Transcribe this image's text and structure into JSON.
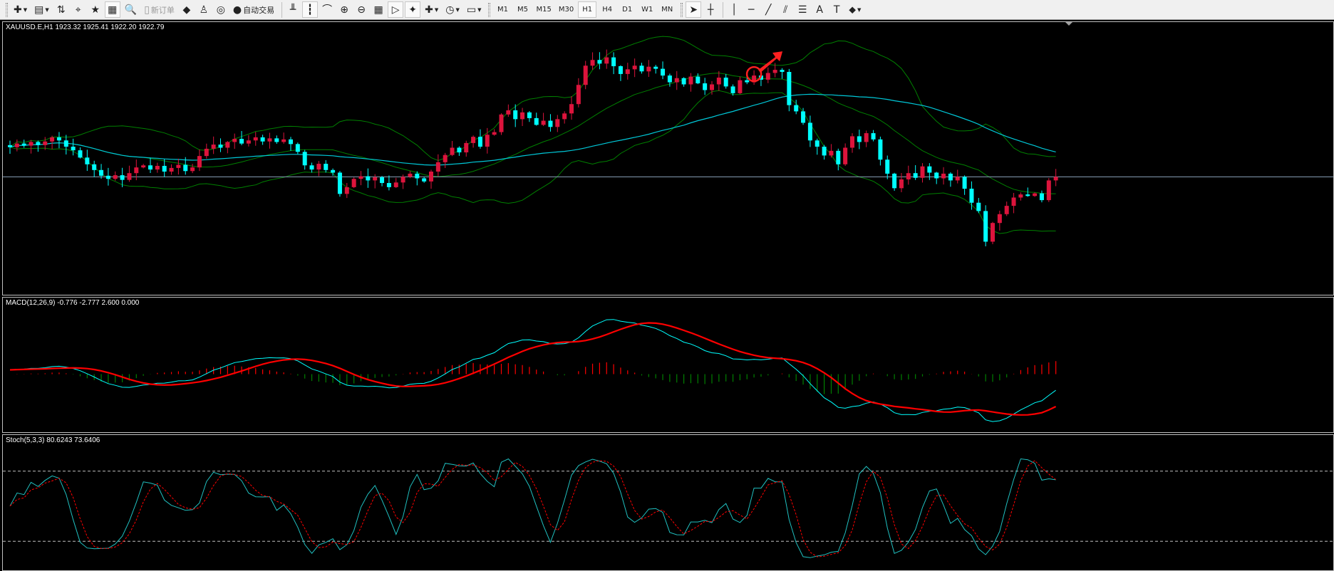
{
  "toolbar": {
    "items": [
      {
        "icon": "new-chart-icon",
        "glyph": "✚",
        "dropdown": true
      },
      {
        "icon": "profiles-icon",
        "glyph": "▤",
        "dropdown": true
      },
      {
        "icon": "market-watch-icon",
        "glyph": "⇅"
      },
      {
        "icon": "data-window-icon",
        "glyph": "⌖"
      },
      {
        "icon": "navigator-icon",
        "glyph": "★"
      },
      {
        "icon": "terminal-icon",
        "glyph": "▦",
        "active": true
      },
      {
        "icon": "strategy-tester-icon",
        "glyph": "🔍"
      },
      {
        "icon": "new-order-icon",
        "glyph": "▯",
        "label": "新订单",
        "disabled": true
      },
      {
        "icon": "metaeditor-icon",
        "glyph": "◆"
      },
      {
        "icon": "options-icon",
        "glyph": "♙"
      },
      {
        "icon": "signals-icon",
        "glyph": "◎"
      },
      {
        "icon": "autotrading-icon",
        "glyph": "●",
        "label": "自动交易"
      },
      {
        "sep": true
      },
      {
        "icon": "bar-chart-icon",
        "glyph": "╨"
      },
      {
        "icon": "candlestick-icon",
        "glyph": "┇",
        "active": true
      },
      {
        "icon": "line-chart-icon",
        "glyph": "⌒"
      },
      {
        "icon": "zoom-in-icon",
        "glyph": "⊕"
      },
      {
        "icon": "zoom-out-icon",
        "glyph": "⊖"
      },
      {
        "icon": "tile-windows-icon",
        "glyph": "▦"
      },
      {
        "icon": "chart-shift-icon",
        "glyph": "▷",
        "active": true
      },
      {
        "icon": "autoscroll-icon",
        "glyph": "✦",
        "active": true
      },
      {
        "icon": "indicators-icon",
        "glyph": "✚",
        "dropdown": true
      },
      {
        "icon": "periods-icon",
        "glyph": "◷",
        "dropdown": true
      },
      {
        "icon": "templates-icon",
        "glyph": "▭",
        "dropdown": true
      },
      {
        "grip": true
      }
    ],
    "timeframes": [
      "M1",
      "M5",
      "M15",
      "M30",
      "H1",
      "H4",
      "D1",
      "W1",
      "MN"
    ],
    "active_timeframe": "H1",
    "tools": [
      {
        "icon": "cursor-icon",
        "glyph": "➤",
        "active": true
      },
      {
        "icon": "crosshair-icon",
        "glyph": "┼"
      },
      {
        "sep": true
      },
      {
        "icon": "vertical-line-icon",
        "glyph": "│"
      },
      {
        "icon": "horizontal-line-icon",
        "glyph": "─"
      },
      {
        "icon": "trendline-icon",
        "glyph": "╱"
      },
      {
        "icon": "equidistant-channel-icon",
        "glyph": "⫽"
      },
      {
        "icon": "fibonacci-icon",
        "glyph": "☰"
      },
      {
        "icon": "text-icon",
        "glyph": "A"
      },
      {
        "icon": "text-label-icon",
        "glyph": "T"
      },
      {
        "icon": "arrows-icon",
        "glyph": "⬥",
        "dropdown": true
      }
    ]
  },
  "main": {
    "label": "XAUUSD.E,H1  1923.32 1925.41 1922.20 1922.79"
  },
  "macd": {
    "label": "MACD(12,26,9) -0.776 -2.777 2.600 0.000"
  },
  "stoch": {
    "label": "Stoch(5,3,3) 80.6243 73.6406"
  },
  "colors": {
    "bull": "#dc143c",
    "bear": "#00ffff",
    "bands": "#008000",
    "ma": "#00c8d8",
    "macd_line": "#00ffff",
    "signal": "#ff0000",
    "hist_pos": "#ff0000",
    "hist_neg": "#008000",
    "stoch_k": "#20c0c0",
    "stoch_d": "#ff0000",
    "price_line": "#8aa0b8"
  },
  "chart_data": {
    "type": "candlestick",
    "symbol": "XAUUSD.E",
    "timeframe": "H1",
    "current_price": 1922.79,
    "ylim": [
      1899.8,
      1952.6
    ],
    "bands_period": 20,
    "bands_dev": 2,
    "ma_period": 50,
    "macd_params": [
      12,
      26,
      9
    ],
    "stoch_params": [
      5,
      3,
      3
    ],
    "stoch_levels": [
      20,
      80
    ],
    "closes": [
      1928.5,
      1929.2,
      1928.8,
      1929.5,
      1928.9,
      1929.6,
      1930.4,
      1929.8,
      1928.6,
      1927.9,
      1926.5,
      1925.2,
      1924.1,
      1923.0,
      1922.4,
      1923.1,
      1922.2,
      1923.5,
      1924.6,
      1925.0,
      1924.2,
      1924.9,
      1923.8,
      1924.5,
      1925.1,
      1923.9,
      1924.6,
      1926.8,
      1928.2,
      1929.0,
      1928.4,
      1929.5,
      1930.1,
      1929.2,
      1929.8,
      1930.4,
      1929.6,
      1930.2,
      1929.5,
      1930.0,
      1929.1,
      1927.6,
      1925.0,
      1924.2,
      1925.3,
      1924.1,
      1923.6,
      1919.5,
      1920.8,
      1922.4,
      1922.9,
      1922.1,
      1922.7,
      1921.6,
      1920.8,
      1921.7,
      1922.8,
      1923.4,
      1922.5,
      1921.9,
      1923.8,
      1925.6,
      1927.0,
      1928.4,
      1927.5,
      1929.3,
      1930.5,
      1928.6,
      1930.9,
      1931.4,
      1934.8,
      1935.6,
      1933.9,
      1935.2,
      1934.1,
      1932.8,
      1933.6,
      1932.4,
      1933.9,
      1935.0,
      1936.8,
      1940.5,
      1944.2,
      1945.3,
      1944.6,
      1945.8,
      1944.1,
      1942.6,
      1943.5,
      1944.2,
      1943.1,
      1944.0,
      1943.6,
      1942.3,
      1941.0,
      1941.8,
      1940.6,
      1942.1,
      1940.8,
      1939.5,
      1940.6,
      1941.9,
      1940.2,
      1938.9,
      1941.4,
      1941.0,
      1942.3,
      1941.5,
      1942.8,
      1943.4,
      1943.0,
      1936.6,
      1935.4,
      1933.2,
      1929.8,
      1928.6,
      1926.9,
      1927.8,
      1925.2,
      1928.4,
      1930.6,
      1929.5,
      1931.2,
      1930.0,
      1926.1,
      1923.4,
      1920.6,
      1922.3,
      1923.5,
      1922.6,
      1924.8,
      1923.6,
      1922.5,
      1923.4,
      1922.1,
      1922.8,
      1920.5,
      1917.8,
      1916.2,
      1910.3,
      1913.9,
      1915.6,
      1917.2,
      1918.8,
      1919.4,
      1919.1,
      1919.6,
      1918.3,
      1922.1,
      1922.79
    ]
  }
}
